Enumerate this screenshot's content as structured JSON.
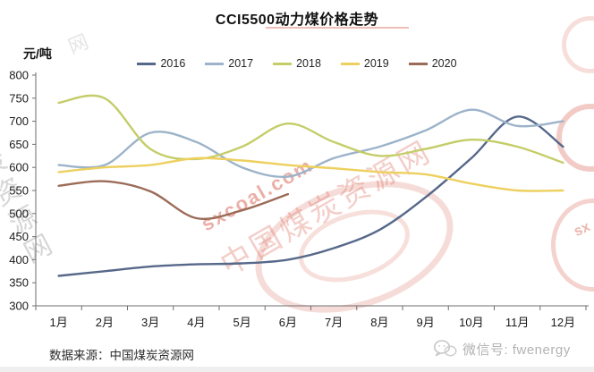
{
  "title": "CCI5500动力煤价格走势",
  "footer": {
    "source_text": "数据来源：中国煤炭资源网",
    "wechat_label": "微信号: fwenergy"
  },
  "watermarks": {
    "diagonal_url": "sxcoal.com",
    "stamp_text": "中国煤炭资源网",
    "left_edge_text": "煤炭资源网",
    "corner_glyph": "网",
    "right_stamp_letters": "sx"
  },
  "chart_data": {
    "type": "line",
    "title": "CCI5500动力煤价格走势",
    "xlabel": "",
    "ylabel": "元/吨",
    "ylim": [
      300,
      800
    ],
    "yticks": [
      800,
      750,
      700,
      650,
      600,
      550,
      500,
      450,
      400,
      350,
      300
    ],
    "grid": false,
    "legend_position": "top",
    "categories": [
      "1月",
      "2月",
      "3月",
      "4月",
      "5月",
      "6月",
      "7月",
      "8月",
      "9月",
      "10月",
      "11月",
      "12月"
    ],
    "series": [
      {
        "name": "2016",
        "color": "#56688a",
        "values": [
          365,
          375,
          385,
          390,
          392,
          400,
          425,
          465,
          535,
          620,
          710,
          645
        ]
      },
      {
        "name": "2017",
        "color": "#9cb3c9",
        "values": [
          605,
          605,
          675,
          655,
          600,
          580,
          620,
          645,
          680,
          725,
          690,
          700
        ]
      },
      {
        "name": "2018",
        "color": "#c4cd68",
        "values": [
          740,
          750,
          640,
          618,
          645,
          695,
          655,
          625,
          640,
          660,
          645,
          610
        ]
      },
      {
        "name": "2019",
        "color": "#edd05e",
        "values": [
          590,
          600,
          605,
          620,
          615,
          605,
          598,
          590,
          585,
          565,
          550,
          550
        ]
      },
      {
        "name": "2020",
        "color": "#9c6b58",
        "values": [
          560,
          570,
          548,
          490,
          507,
          542,
          null,
          null,
          null,
          null,
          null,
          null
        ]
      }
    ]
  }
}
